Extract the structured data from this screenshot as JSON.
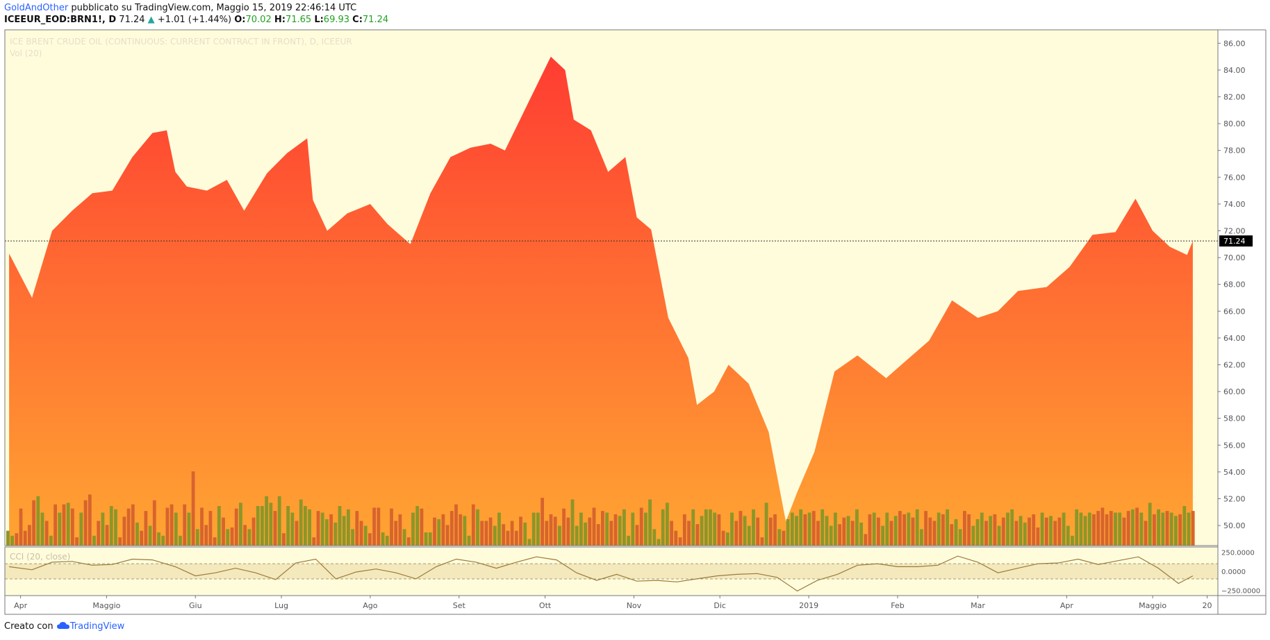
{
  "header": {
    "author": "GoldAndOther",
    "published": "pubblicato su TradingView.com, Maggio 15, 2019 22:46:14 UTC",
    "symbol": "ICEEUR_EOD:BRN1!, D",
    "last": "71.24",
    "change": "+1.01 (+1.44%)",
    "open_label": "O:",
    "open": "70.02",
    "high_label": "H:",
    "high": "71.65",
    "low_label": "L:",
    "low": "69.93",
    "close_label": "C:",
    "close": "71.24"
  },
  "footer": {
    "created_with": "Creato con",
    "brand": "TradingView"
  },
  "colors": {
    "background": "#fffcdc",
    "area_top": "#ff3c32",
    "area_bottom": "#ffa532",
    "vol_up": "#8c9628",
    "vol_down": "#d7642d",
    "cci_line": "#9b7a3a",
    "cci_band": "#f3e9bc",
    "price_tag": "#000000"
  },
  "chart_data": {
    "type": "area",
    "title": "ICE BRENT CRUDE OIL (CONTINUOUS: CURRENT CONTRACT IN FRONT), D, ICEEUR",
    "subtitle": "Vol (20)",
    "last_price": 71.24,
    "ylim": [
      48.5,
      87.0
    ],
    "y_ticks": [
      "86.00",
      "84.00",
      "82.00",
      "80.00",
      "78.00",
      "76.00",
      "74.00",
      "72.00",
      "70.00",
      "68.00",
      "66.00",
      "64.00",
      "62.00",
      "60.00",
      "58.00",
      "56.00",
      "54.00",
      "52.00",
      "50.00"
    ],
    "x_ticks": [
      "Apr",
      "Maggio",
      "Giu",
      "Lug",
      "Ago",
      "Set",
      "Ott",
      "Nov",
      "Dic",
      "2019",
      "Feb",
      "Mar",
      "Apr",
      "Maggio",
      "20"
    ],
    "price_series": {
      "x": [
        "2018-03-28",
        "2018-04-05",
        "2018-04-12",
        "2018-04-19",
        "2018-04-26",
        "2018-05-03",
        "2018-05-10",
        "2018-05-17",
        "2018-05-22",
        "2018-05-25",
        "2018-05-29",
        "2018-06-05",
        "2018-06-12",
        "2018-06-18",
        "2018-06-26",
        "2018-07-03",
        "2018-07-10",
        "2018-07-12",
        "2018-07-17",
        "2018-07-24",
        "2018-08-01",
        "2018-08-07",
        "2018-08-15",
        "2018-08-22",
        "2018-08-29",
        "2018-09-05",
        "2018-09-12",
        "2018-09-17",
        "2018-09-25",
        "2018-10-03",
        "2018-10-08",
        "2018-10-11",
        "2018-10-17",
        "2018-10-23",
        "2018-10-29",
        "2018-11-02",
        "2018-11-07",
        "2018-11-13",
        "2018-11-20",
        "2018-11-23",
        "2018-11-29",
        "2018-12-04",
        "2018-12-11",
        "2018-12-18",
        "2018-12-24",
        "2018-12-28",
        "2019-01-03",
        "2019-01-10",
        "2019-01-18",
        "2019-01-28",
        "2019-02-05",
        "2019-02-12",
        "2019-02-20",
        "2019-03-01",
        "2019-03-08",
        "2019-03-15",
        "2019-03-25",
        "2019-04-02",
        "2019-04-10",
        "2019-04-18",
        "2019-04-25",
        "2019-05-01",
        "2019-05-07",
        "2019-05-13",
        "2019-05-15"
      ],
      "y": [
        70.3,
        67.0,
        72.0,
        73.5,
        74.8,
        75.0,
        77.5,
        79.3,
        79.5,
        76.4,
        75.3,
        75.0,
        75.8,
        73.5,
        76.3,
        77.8,
        78.9,
        74.3,
        72.0,
        73.3,
        74.0,
        72.5,
        71.0,
        74.8,
        77.5,
        78.2,
        78.5,
        78.0,
        81.5,
        85.0,
        84.0,
        80.3,
        79.5,
        76.4,
        77.5,
        73.0,
        72.1,
        65.5,
        62.5,
        59.0,
        60.0,
        62.0,
        60.6,
        57.0,
        50.3,
        52.5,
        55.5,
        61.5,
        62.7,
        61.0,
        62.5,
        63.8,
        66.8,
        65.5,
        66.0,
        67.5,
        67.8,
        69.3,
        71.7,
        71.9,
        74.4,
        72.0,
        70.8,
        70.2,
        71.24
      ]
    },
    "volume_series": {
      "name": "Vol (20)",
      "ylim": [
        0,
        160000
      ],
      "values": [
        18000,
        12000,
        15000,
        45000,
        18000,
        25000,
        55000,
        60000,
        40000,
        30000,
        12000,
        50000,
        40000,
        50000,
        52000,
        45000,
        10000,
        40000,
        55000,
        62000,
        12000,
        30000,
        40000,
        25000,
        48000,
        44000,
        10000,
        35000,
        45000,
        50000,
        28000,
        18000,
        42000,
        24000,
        55000,
        16000,
        12000,
        46000,
        50000,
        40000,
        12000,
        50000,
        40000,
        90000,
        20000,
        46000,
        25000,
        42000,
        10000,
        48000,
        34000,
        20000,
        22000,
        45000,
        52000,
        25000,
        20000,
        34000,
        48000,
        48000,
        60000,
        52000,
        42000,
        60000,
        15000,
        48000,
        40000,
        30000,
        56000,
        48000,
        44000,
        10000,
        42000,
        40000,
        32000,
        38000,
        28000,
        48000,
        36000,
        44000,
        20000,
        42000,
        30000,
        24000,
        15000,
        46000,
        46000,
        16000,
        12000,
        45000,
        30000,
        38000,
        20000,
        10000,
        40000,
        48000,
        45000,
        16000,
        16000,
        34000,
        32000,
        38000,
        25000,
        42000,
        50000,
        38000,
        36000,
        12000,
        50000,
        44000,
        30000,
        30000,
        34000,
        24000,
        40000,
        26000,
        18000,
        30000,
        18000,
        35000,
        28000,
        8000,
        40000,
        40000,
        58000,
        30000,
        38000,
        35000,
        24000,
        45000,
        34000,
        56000,
        24000,
        40000,
        28000,
        34000,
        46000,
        26000,
        42000,
        40000,
        30000,
        38000,
        36000,
        44000,
        12000,
        40000,
        25000,
        46000,
        40000,
        56000,
        20000,
        8000,
        44000,
        52000,
        30000,
        18000,
        10000,
        38000,
        30000,
        44000,
        26000,
        36000,
        44000,
        44000,
        40000,
        38000,
        18000,
        16000,
        40000,
        30000,
        42000,
        36000,
        24000,
        44000,
        34000,
        10000,
        52000,
        34000,
        38000,
        20000,
        18000,
        32000,
        40000,
        36000,
        44000,
        38000,
        40000,
        42000,
        30000,
        44000,
        36000,
        24000,
        40000,
        26000,
        34000,
        36000,
        30000,
        44000,
        28000,
        14000,
        38000,
        40000,
        34000,
        24000,
        40000,
        30000,
        36000,
        42000,
        38000,
        40000,
        34000,
        44000,
        20000,
        42000,
        34000,
        30000,
        40000,
        38000,
        44000,
        26000,
        32000,
        20000,
        42000,
        38000,
        24000,
        32000,
        40000,
        30000,
        36000,
        38000,
        24000,
        34000,
        40000,
        44000,
        30000,
        36000,
        28000,
        34000,
        38000,
        22000,
        40000,
        34000,
        36000,
        30000,
        34000,
        40000,
        24000,
        12000,
        44000,
        40000,
        36000,
        40000,
        38000,
        42000,
        46000,
        38000,
        42000,
        40000,
        40000,
        34000,
        42000,
        44000,
        46000,
        40000,
        30000,
        52000,
        38000,
        44000,
        40000,
        42000,
        40000,
        36000,
        38000,
        48000,
        40000,
        42000
      ]
    },
    "cci": {
      "name": "CCI (20, close)",
      "y_ticks": [
        "250.0000",
        "0.0000",
        "−250.0000"
      ],
      "ylim": [
        -320,
        320
      ],
      "band": [
        -100,
        100
      ],
      "x": [
        "2018-03-28",
        "2018-04-05",
        "2018-04-12",
        "2018-04-19",
        "2018-04-26",
        "2018-05-03",
        "2018-05-10",
        "2018-05-17",
        "2018-05-25",
        "2018-06-01",
        "2018-06-08",
        "2018-06-15",
        "2018-06-22",
        "2018-06-29",
        "2018-07-06",
        "2018-07-13",
        "2018-07-20",
        "2018-07-27",
        "2018-08-03",
        "2018-08-10",
        "2018-08-17",
        "2018-08-24",
        "2018-08-31",
        "2018-09-07",
        "2018-09-14",
        "2018-09-21",
        "2018-09-28",
        "2018-10-05",
        "2018-10-12",
        "2018-10-19",
        "2018-10-26",
        "2018-11-02",
        "2018-11-09",
        "2018-11-16",
        "2018-11-23",
        "2018-11-30",
        "2018-12-07",
        "2018-12-14",
        "2018-12-21",
        "2018-12-28",
        "2019-01-04",
        "2019-01-11",
        "2019-01-18",
        "2019-01-25",
        "2019-02-01",
        "2019-02-08",
        "2019-02-15",
        "2019-02-22",
        "2019-03-01",
        "2019-03-08",
        "2019-03-15",
        "2019-03-22",
        "2019-03-29",
        "2019-04-05",
        "2019-04-12",
        "2019-04-19",
        "2019-04-26",
        "2019-05-03",
        "2019-05-10",
        "2019-05-15"
      ],
      "values": [
        60,
        20,
        120,
        130,
        80,
        90,
        160,
        150,
        60,
        -60,
        -20,
        40,
        -20,
        -110,
        110,
        160,
        -100,
        -10,
        30,
        -20,
        -100,
        60,
        160,
        120,
        40,
        120,
        190,
        150,
        -20,
        -120,
        -40,
        -130,
        -120,
        -140,
        -100,
        -60,
        -40,
        -30,
        -80,
        -260,
        -120,
        -40,
        80,
        100,
        60,
        60,
        80,
        200,
        120,
        -20,
        40,
        100,
        110,
        160,
        90,
        140,
        190,
        40,
        -160,
        -60
      ]
    }
  }
}
